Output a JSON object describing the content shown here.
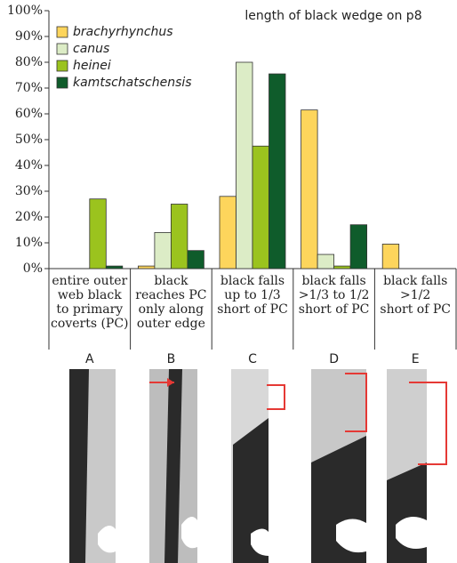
{
  "chart_data": {
    "type": "bar",
    "title": "length of black wedge on p8",
    "categories": [
      "entire outer\nweb black\nto primary\ncoverts (PC)",
      "black\nreaches PC\nonly along\nouter edge",
      "black falls\nup to 1/3\nshort of PC",
      "black falls\n>1/3 to 1/2\nshort of PC",
      "black falls\n>1/2\nshort of PC"
    ],
    "category_letters": [
      "A",
      "B",
      "C",
      "D",
      "E"
    ],
    "series": [
      {
        "name": "brachyrhynchus",
        "color": "#fdd55c",
        "values": [
          0,
          1,
          28,
          61.5,
          9.5
        ]
      },
      {
        "name": "canus",
        "color": "#dcecc6",
        "values": [
          0,
          14,
          80,
          5.5,
          0
        ]
      },
      {
        "name": "heinei",
        "color": "#9bc31e",
        "values": [
          27,
          25,
          47.5,
          1,
          0
        ]
      },
      {
        "name": "kamtschatschensis",
        "color": "#0f5c2b",
        "values": [
          1,
          7,
          75.5,
          17,
          0
        ]
      }
    ],
    "ylim": [
      0,
      100
    ],
    "yticks": [
      {
        "value": 0,
        "label": "0%"
      },
      {
        "value": 10,
        "label": "10%"
      },
      {
        "value": 20,
        "label": "20%"
      },
      {
        "value": 30,
        "label": "30%"
      },
      {
        "value": 40,
        "label": "40%"
      },
      {
        "value": 50,
        "label": "50%"
      },
      {
        "value": 60,
        "label": "60%"
      },
      {
        "value": 70,
        "label": "70%"
      },
      {
        "value": 80,
        "label": "80%"
      },
      {
        "value": 90,
        "label": "90%"
      },
      {
        "value": 100,
        "label": "100%"
      }
    ],
    "legend": "upper left"
  }
}
